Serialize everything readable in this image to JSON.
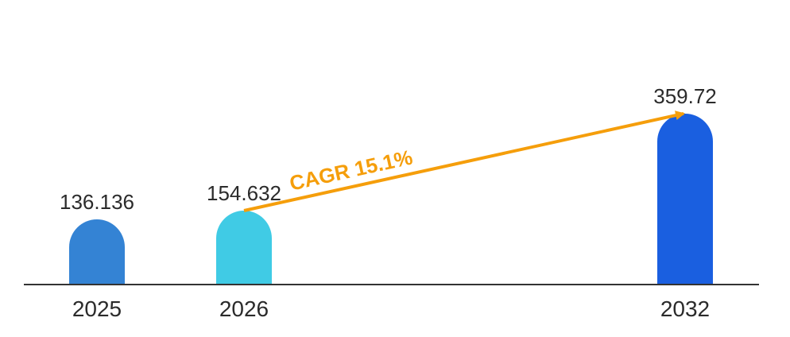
{
  "chart_data": {
    "type": "bar",
    "categories": [
      "2025",
      "2026",
      "2032"
    ],
    "values": [
      136.136,
      154.632,
      359.72
    ],
    "value_labels": [
      "136.136",
      "154.632",
      "359.72"
    ],
    "bar_colors": [
      "#3483d4",
      "#40cbe5",
      "#1a5fe0"
    ],
    "title": "",
    "xlabel": "",
    "ylabel": "",
    "annotation": {
      "text": "CAGR 15.1%",
      "from_category": "2026",
      "to_category": "2032",
      "color": "#f59e0b"
    }
  }
}
